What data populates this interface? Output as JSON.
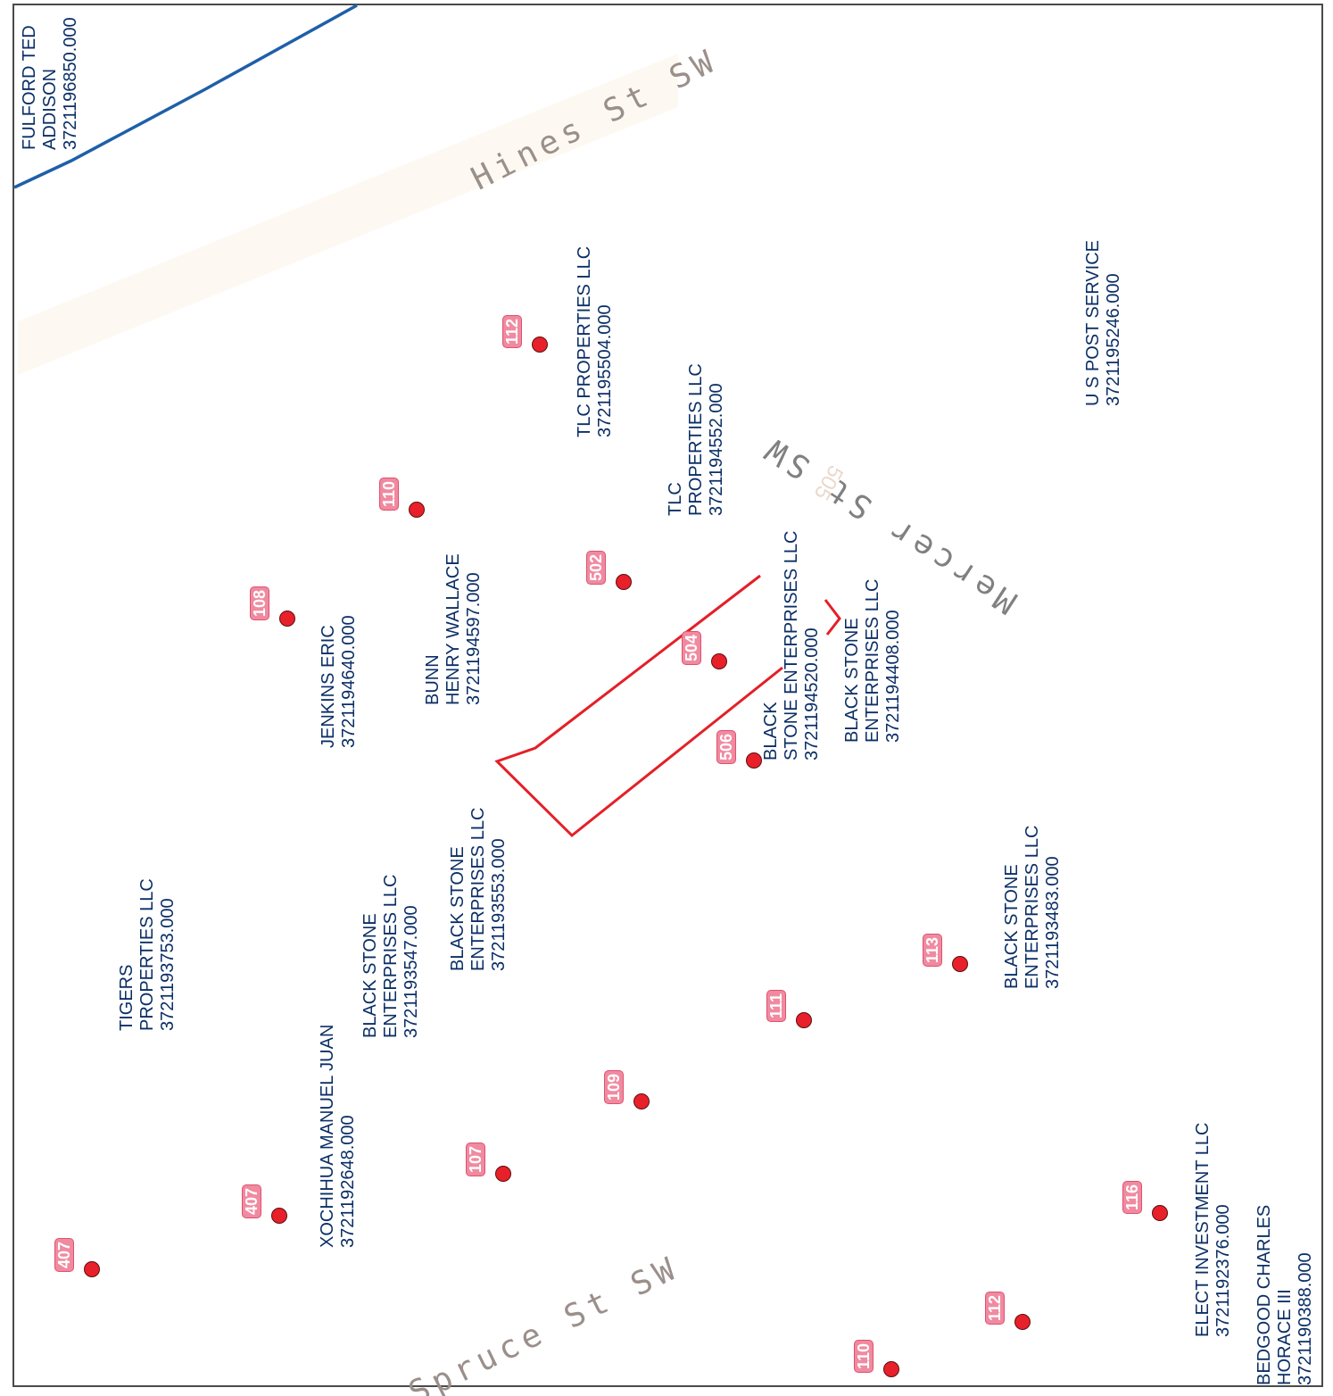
{
  "colors": {
    "boundary_blue": "#1f5fa8",
    "subject_parcel_red": "#e32028",
    "point_red": "#e8202a",
    "address_badge_pink": "#f08aa0",
    "parcel_label_navy": "#0b2f66"
  },
  "streets": [
    {
      "name": "Hines St SW"
    },
    {
      "name": "Mercer St SW"
    },
    {
      "name": "Spruce St SW"
    }
  ],
  "parcels": [
    {
      "owner_lines": [
        "FULFORD TED",
        "ADDISON"
      ],
      "parcel_id": "3721196850.000"
    },
    {
      "owner_lines": [
        "TLC PROPERTIES LLC"
      ],
      "parcel_id": "3721195504.000"
    },
    {
      "owner_lines": [
        "TLC",
        "PROPERTIES LLC"
      ],
      "parcel_id": "3721194552.000"
    },
    {
      "owner_lines": [
        "U S POST SERVICE"
      ],
      "parcel_id": "3721195246.000"
    },
    {
      "owner_lines": [
        "BLACK",
        "STONE ENTERPRISES LLC"
      ],
      "parcel_id": "3721194520.000"
    },
    {
      "owner_lines": [
        "BLACK STONE",
        "ENTERPRISES LLC"
      ],
      "parcel_id": "3721194408.000"
    },
    {
      "owner_lines": [
        "BUNN",
        "HENRY WALLACE"
      ],
      "parcel_id": "3721194597.000"
    },
    {
      "owner_lines": [
        "JENKINS ERIC"
      ],
      "parcel_id": "3721194640.000"
    },
    {
      "owner_lines": [
        "BLACK STONE",
        "ENTERPRISES LLC"
      ],
      "parcel_id": "3721193553.000"
    },
    {
      "owner_lines": [
        "BLACK STONE",
        "ENTERPRISES LLC"
      ],
      "parcel_id": "3721193547.000"
    },
    {
      "owner_lines": [
        "TIGERS",
        "PROPERTIES LLC"
      ],
      "parcel_id": "3721193753.000"
    },
    {
      "owner_lines": [
        "XOCHIHUA MANUEL JUAN"
      ],
      "parcel_id": "3721192648.000"
    },
    {
      "owner_lines": [
        "BLACK STONE",
        "ENTERPRISES LLC"
      ],
      "parcel_id": "3721193483.000"
    },
    {
      "owner_lines": [
        "ELECT INVESTMENT LLC"
      ],
      "parcel_id": "3721192376.000"
    },
    {
      "owner_lines": [
        "BEDGOOD CHARLES",
        "HORACE III"
      ],
      "parcel_id": "3721190388.000"
    }
  ],
  "address_points": [
    {
      "number": "112"
    },
    {
      "number": "110"
    },
    {
      "number": "502"
    },
    {
      "number": "108"
    },
    {
      "number": "504"
    },
    {
      "number": "506"
    },
    {
      "number": "113"
    },
    {
      "number": "111"
    },
    {
      "number": "109"
    },
    {
      "number": "107"
    },
    {
      "number": "407"
    },
    {
      "number": "407"
    },
    {
      "number": "116"
    },
    {
      "number": "112"
    },
    {
      "number": "110"
    }
  ],
  "faded_labels": [
    {
      "text": "505"
    }
  ]
}
